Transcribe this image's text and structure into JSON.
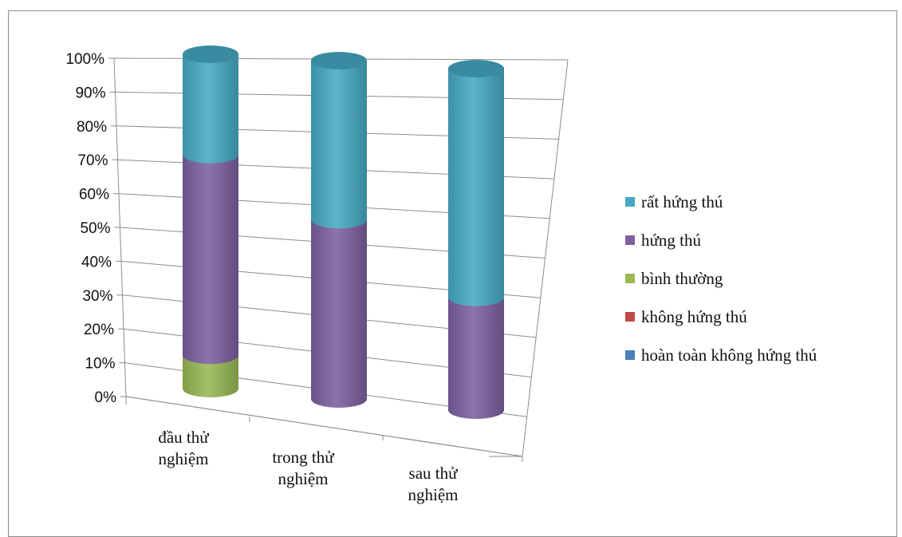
{
  "chart_data": {
    "type": "bar",
    "stacked": true,
    "style": "3d-cylinder",
    "categories": [
      "đầu thử nghiệm",
      "trong thử nghiệm",
      "sau thử nghiệm"
    ],
    "category_lines": [
      [
        "đầu thử",
        "nghiệm"
      ],
      [
        "trong thử",
        "nghiệm"
      ],
      [
        "sau thử",
        "nghiệm"
      ]
    ],
    "series": [
      {
        "name": "hoàn toàn không hứng thú",
        "color": "#4a7ebb",
        "values": [
          0,
          0,
          0
        ]
      },
      {
        "name": "không hứng thú",
        "color": "#be4b48",
        "values": [
          0,
          0,
          0
        ]
      },
      {
        "name": "bình thường",
        "color": "#98b954",
        "values": [
          10,
          0,
          0
        ]
      },
      {
        "name": "hứng thú",
        "color": "#7d60a0",
        "values": [
          60,
          53,
          33
        ]
      },
      {
        "name": "rất hứng thú",
        "color": "#46aac4",
        "values": [
          30,
          47,
          67
        ]
      }
    ],
    "legend_order": [
      "rất hứng thú",
      "hứng thú",
      "bình thường",
      "không hứng thú",
      "hoàn toàn không hứng thú"
    ],
    "ylim": [
      0,
      100
    ],
    "yticks": [
      "0%",
      "10%",
      "20%",
      "30%",
      "40%",
      "50%",
      "60%",
      "70%",
      "80%",
      "90%",
      "100%"
    ],
    "grid": true,
    "legend_position": "right",
    "xlabel": "",
    "ylabel": "",
    "title": ""
  }
}
